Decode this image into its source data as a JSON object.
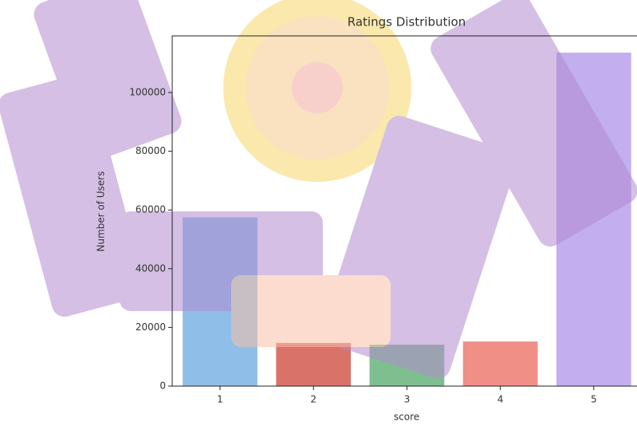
{
  "chart_data": {
    "type": "bar",
    "title": "Ratings Distribution",
    "x_label": "score",
    "y_label": "Number of Users",
    "categories": [
      "1",
      "2",
      "3",
      "4",
      "5"
    ],
    "values": [
      57500,
      14700,
      14100,
      15200,
      113600
    ],
    "colors": [
      "#8fbfe8",
      "#d9736a",
      "#7fbf8f",
      "#ef8f86",
      "#c3aef0"
    ],
    "ylim": [
      0,
      119300
    ],
    "yticks": [
      0,
      20000,
      40000,
      60000,
      80000,
      100000
    ],
    "grid": false
  }
}
